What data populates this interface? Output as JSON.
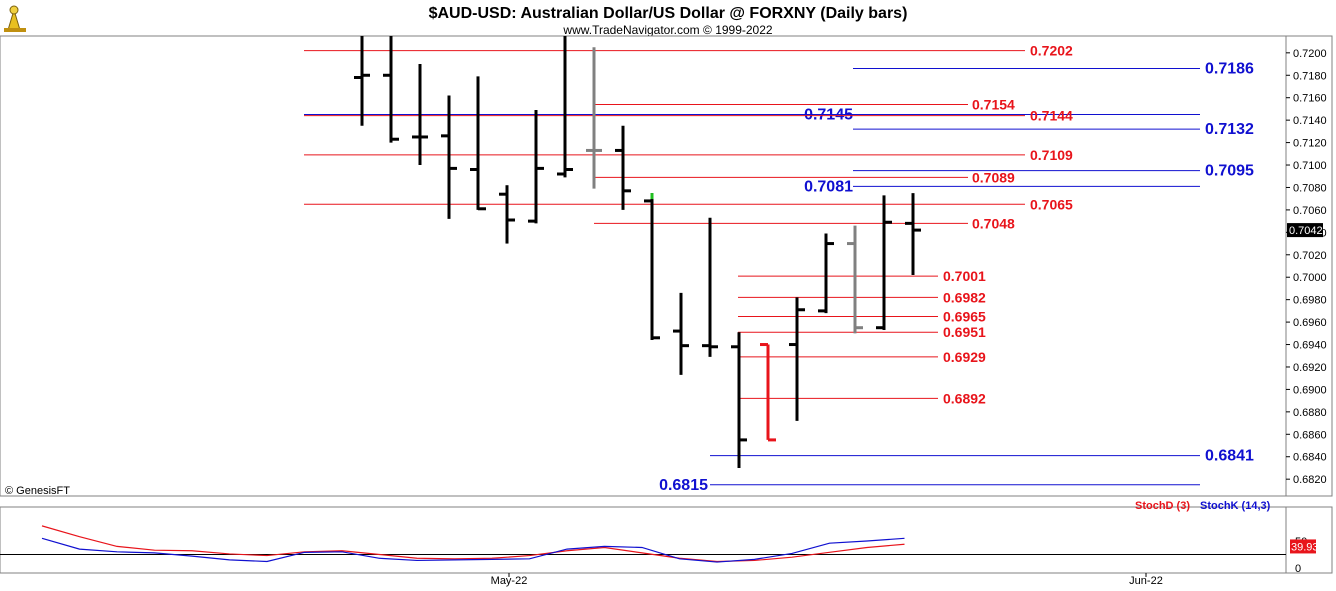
{
  "header": {
    "title": "$AUD-USD:  Australian Dollar/US Dollar @ FORXNY  (Daily bars)",
    "subtitle": "www.TradeNavigator.com © 1999-2022",
    "copyright": "© GenesisFT"
  },
  "colors": {
    "red_level": "#e8141b",
    "blue_level": "#1010d0",
    "bar": "#000000",
    "bar_gray": "#808080",
    "bar_red": "#e8141b",
    "last_price_bg": "#000000",
    "stoch_badge_bg": "#e8141b"
  },
  "chart_data": [
    {
      "type": "ohlc",
      "ylim": [
        0.6805,
        0.7215
      ],
      "yticks": [
        "0.7200",
        "0.7180",
        "0.7160",
        "0.7140",
        "0.7120",
        "0.7100",
        "0.7080",
        "0.7060",
        "0.7040",
        "0.7020",
        "0.7000",
        "0.6980",
        "0.6960",
        "0.6940",
        "0.6920",
        "0.6900",
        "0.6880",
        "0.6860",
        "0.6840",
        "0.6820"
      ],
      "xtick_labels": [
        "May-22",
        "Jun-22"
      ],
      "last_price": "0.7042",
      "bars": [
        {
          "i": 0,
          "o": 0.7178,
          "h": 0.7215,
          "l": 0.7135,
          "c": 0.718,
          "color": "black"
        },
        {
          "i": 1,
          "o": 0.718,
          "h": 0.7215,
          "l": 0.712,
          "c": 0.7123,
          "color": "black"
        },
        {
          "i": 2,
          "o": 0.7125,
          "h": 0.719,
          "l": 0.71,
          "c": 0.7125,
          "color": "black"
        },
        {
          "i": 3,
          "o": 0.7126,
          "h": 0.7162,
          "l": 0.7052,
          "c": 0.7097,
          "color": "black"
        },
        {
          "i": 4,
          "o": 0.7096,
          "h": 0.7179,
          "l": 0.706,
          "c": 0.7061,
          "color": "black"
        },
        {
          "i": 5,
          "o": 0.7074,
          "h": 0.7082,
          "l": 0.703,
          "c": 0.7051,
          "color": "black"
        },
        {
          "i": 6,
          "o": 0.705,
          "h": 0.7149,
          "l": 0.7048,
          "c": 0.7097,
          "color": "black"
        },
        {
          "i": 7,
          "o": 0.7092,
          "h": 0.7215,
          "l": 0.7089,
          "c": 0.7096,
          "color": "black"
        },
        {
          "i": 8,
          "o": 0.7113,
          "h": 0.7205,
          "l": 0.7079,
          "c": 0.7113,
          "color": "gray"
        },
        {
          "i": 9,
          "o": 0.7113,
          "h": 0.7135,
          "l": 0.706,
          "c": 0.7077,
          "color": "black"
        },
        {
          "i": 10,
          "o": 0.7068,
          "h": 0.7075,
          "l": 0.6944,
          "c": 0.6946,
          "color": "black",
          "top_color": "#20c020"
        },
        {
          "i": 11,
          "o": 0.6952,
          "h": 0.6986,
          "l": 0.6913,
          "c": 0.6939,
          "color": "black"
        },
        {
          "i": 12,
          "o": 0.6939,
          "h": 0.7053,
          "l": 0.6929,
          "c": 0.6938,
          "color": "black"
        },
        {
          "i": 13,
          "o": 0.6938,
          "h": 0.6951,
          "l": 0.683,
          "c": 0.6855,
          "color": "black"
        },
        {
          "i": 14,
          "o": 0.694,
          "h": 0.694,
          "l": 0.6855,
          "c": 0.6855,
          "color": "red"
        },
        {
          "i": 15,
          "o": 0.694,
          "h": 0.6982,
          "l": 0.6872,
          "c": 0.6971,
          "color": "black"
        },
        {
          "i": 16,
          "o": 0.697,
          "h": 0.7039,
          "l": 0.6968,
          "c": 0.703,
          "color": "black"
        },
        {
          "i": 17,
          "o": 0.703,
          "h": 0.7046,
          "l": 0.695,
          "c": 0.6955,
          "color": "gray"
        },
        {
          "i": 18,
          "o": 0.6955,
          "h": 0.7073,
          "l": 0.6953,
          "c": 0.7049,
          "color": "black"
        },
        {
          "i": 19,
          "o": 0.7048,
          "h": 0.7075,
          "l": 0.7002,
          "c": 0.7042,
          "color": "black"
        }
      ],
      "levels": [
        {
          "value": 0.7202,
          "label": "0.7202",
          "color": "red",
          "span": "long"
        },
        {
          "value": 0.7186,
          "label": "0.7186",
          "color": "blue",
          "span": "right"
        },
        {
          "value": 0.7154,
          "label": "0.7154",
          "color": "red",
          "span": "mid"
        },
        {
          "value": 0.7145,
          "label": "0.7145",
          "color": "blue",
          "span": "full"
        },
        {
          "value": 0.7144,
          "label": "0.7144",
          "color": "red",
          "span": "long"
        },
        {
          "value": 0.7132,
          "label": "0.7132",
          "color": "blue",
          "span": "right"
        },
        {
          "value": 0.7109,
          "label": "0.7109",
          "color": "red",
          "span": "long"
        },
        {
          "value": 0.7095,
          "label": "0.7095",
          "color": "blue",
          "span": "right"
        },
        {
          "value": 0.7089,
          "label": "0.7089",
          "color": "red",
          "span": "mid"
        },
        {
          "value": 0.7081,
          "label": "0.7081",
          "color": "blue",
          "span": "right2"
        },
        {
          "value": 0.7065,
          "label": "0.7065",
          "color": "red",
          "span": "long"
        },
        {
          "value": 0.7048,
          "label": "0.7048",
          "color": "red",
          "span": "mid"
        },
        {
          "value": 0.7001,
          "label": "0.7001",
          "color": "red",
          "span": "short"
        },
        {
          "value": 0.6982,
          "label": "0.6982",
          "color": "red",
          "span": "short"
        },
        {
          "value": 0.6965,
          "label": "0.6965",
          "color": "red",
          "span": "short"
        },
        {
          "value": 0.6951,
          "label": "0.6951",
          "color": "red",
          "span": "short"
        },
        {
          "value": 0.6929,
          "label": "0.6929",
          "color": "red",
          "span": "short"
        },
        {
          "value": 0.6892,
          "label": "0.6892",
          "color": "red",
          "span": "short"
        },
        {
          "value": 0.6841,
          "label": "0.6841",
          "color": "blue",
          "span": "lowright"
        },
        {
          "value": 0.6815,
          "label": "0.6815",
          "color": "blue",
          "span": "lowleft"
        }
      ]
    },
    {
      "type": "line",
      "title": "Stochastic",
      "ylim": [
        0,
        100
      ],
      "yticks": [
        "50",
        "0"
      ],
      "current_value": "39.93",
      "series": [
        {
          "name": "StochD (3)",
          "color": "red",
          "values": [
            78,
            58,
            40,
            33,
            32,
            26,
            23,
            30,
            32,
            25,
            18,
            17,
            18,
            23,
            32,
            38,
            28,
            18,
            12,
            14,
            20,
            29,
            38,
            44
          ]
        },
        {
          "name": "StochK (14,3)",
          "color": "blue",
          "values": [
            55,
            35,
            30,
            28,
            22,
            15,
            12,
            29,
            30,
            18,
            14,
            15,
            16,
            17,
            35,
            40,
            38,
            17,
            11,
            16,
            27,
            46,
            50,
            55
          ]
        }
      ]
    }
  ]
}
